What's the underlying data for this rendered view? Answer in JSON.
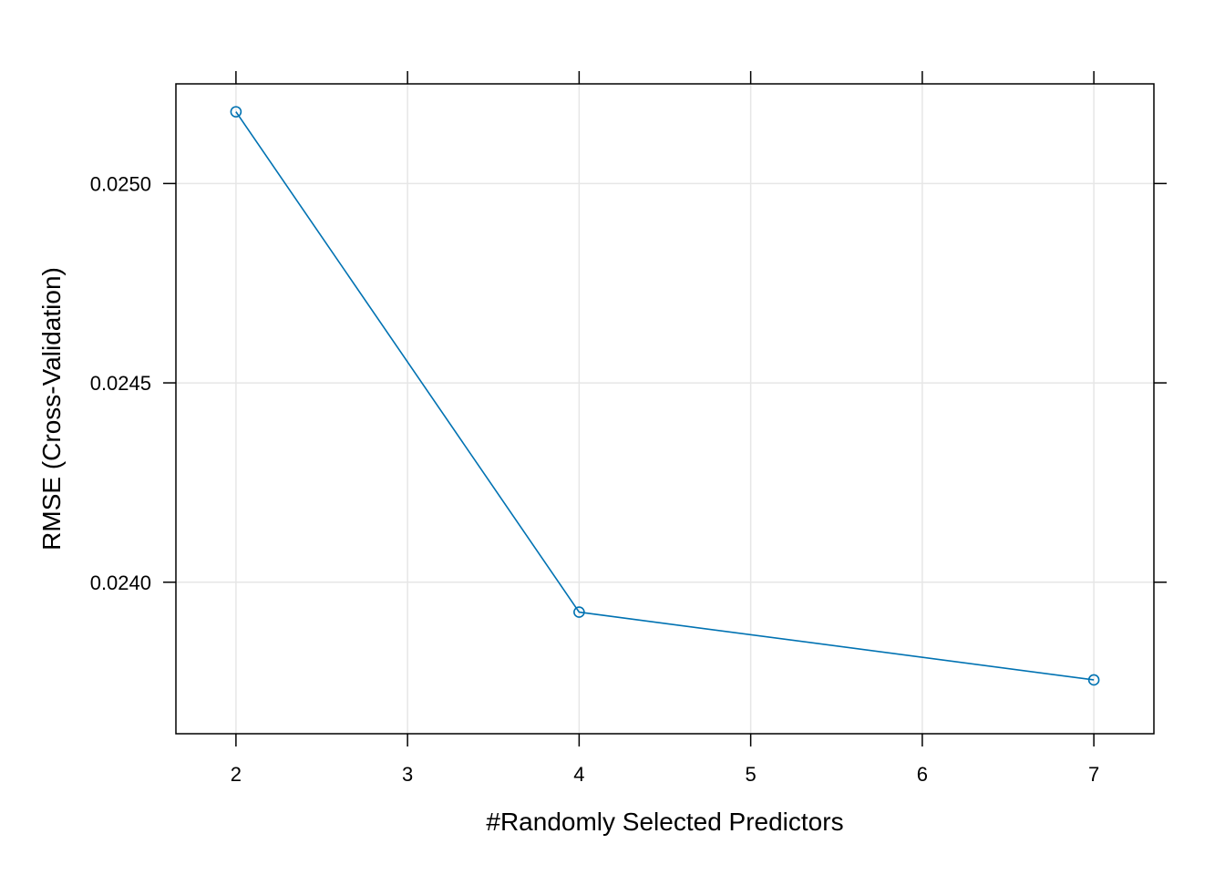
{
  "chart_data": {
    "type": "line",
    "title": "",
    "xlabel": "#Randomly Selected Predictors",
    "ylabel": "RMSE (Cross-Validation)",
    "xlim": [
      1.65,
      7.35
    ],
    "ylim": [
      0.02362,
      0.02525
    ],
    "x_ticks": [
      2,
      3,
      4,
      5,
      6,
      7
    ],
    "x_tick_labels": [
      "2",
      "3",
      "4",
      "5",
      "6",
      "7"
    ],
    "y_ticks": [
      0.024,
      0.0245,
      0.025
    ],
    "y_tick_labels": [
      "0.0240",
      "0.0245",
      "0.0250"
    ],
    "grid": true,
    "series": [
      {
        "color": "#0072b2",
        "marker": "open-circle",
        "x": [
          2,
          4,
          7
        ],
        "y": [
          0.02518,
          0.023925,
          0.023755
        ]
      }
    ]
  }
}
